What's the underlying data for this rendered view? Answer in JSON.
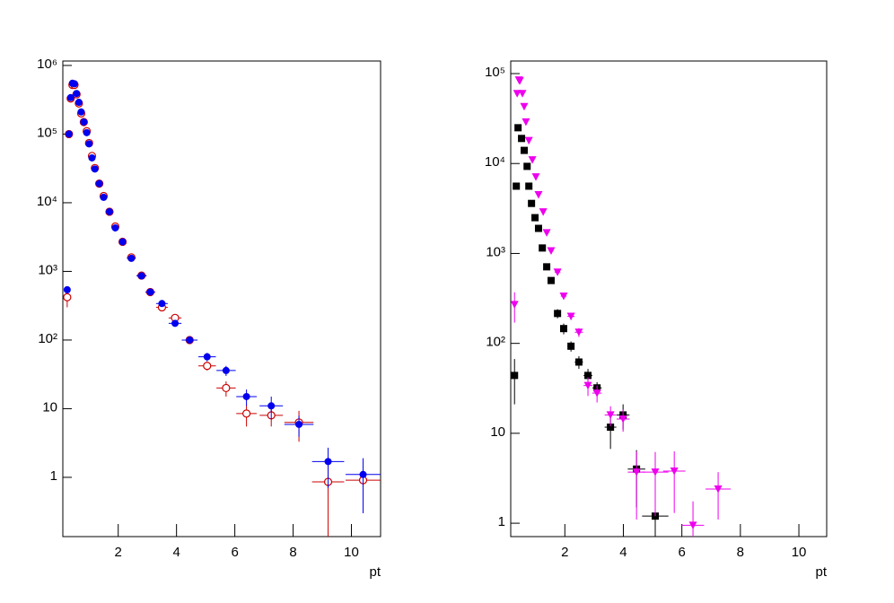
{
  "chart_data": [
    {
      "type": "scatter",
      "log_y": true,
      "xlabel": "pt",
      "xlim": [
        0.1,
        11
      ],
      "ylim": [
        0.137,
        1160000
      ],
      "xticks": [
        2,
        4,
        6,
        8,
        10
      ],
      "yticks": [
        1,
        10,
        {
          "value": 100,
          "label": "10²"
        },
        {
          "value": 1000,
          "label": "10³"
        },
        {
          "value": 10000,
          "label": "10⁴"
        },
        {
          "value": 100000,
          "label": "10⁵"
        },
        {
          "value": 1000000,
          "label": "10⁶"
        }
      ],
      "series": [
        {
          "color": "#cc0000",
          "marker": "circle-open",
          "x": [
            0.25,
            0.31,
            0.37,
            0.43,
            0.5,
            0.57,
            0.65,
            0.73,
            0.82,
            0.92,
            1.0,
            1.1,
            1.2,
            1.35,
            1.5,
            1.7,
            1.9,
            2.15,
            2.45,
            2.8,
            3.1,
            3.5,
            3.95,
            4.45,
            5.05,
            5.7,
            6.4,
            7.25,
            8.2,
            9.2,
            10.4
          ],
          "values": [
            420,
            100000,
            330000,
            520000,
            520000,
            380000,
            280000,
            200000,
            150000,
            110000,
            74000,
            48000,
            32000,
            19000,
            12500,
            7400,
            4500,
            2700,
            1600,
            870,
            500,
            300,
            210,
            100,
            42,
            20,
            8.5,
            8,
            6.3,
            0.86,
            0.91
          ],
          "xerr": [
            0.03,
            0.03,
            0.03,
            0.03,
            0.03,
            0.03,
            0.03,
            0.03,
            0.03,
            0.03,
            0.05,
            0.05,
            0.05,
            0.08,
            0.08,
            0.1,
            0.1,
            0.12,
            0.15,
            0.17,
            0.17,
            0.2,
            0.22,
            0.27,
            0.3,
            0.33,
            0.35,
            0.4,
            0.5,
            0.55,
            0.6
          ],
          "yerr": [
            120,
            1000,
            2000,
            3000,
            3000,
            2000,
            2000,
            1500,
            1000,
            800,
            600,
            400,
            300,
            200,
            150,
            100,
            80,
            60,
            40,
            30,
            20,
            20,
            15,
            8,
            6,
            5,
            3,
            2.5,
            3,
            0.86,
            0.6
          ]
        },
        {
          "color": "#0000ee",
          "marker": "circle",
          "x": [
            0.25,
            0.31,
            0.37,
            0.43,
            0.5,
            0.57,
            0.65,
            0.73,
            0.82,
            0.92,
            1.0,
            1.1,
            1.2,
            1.35,
            1.5,
            1.7,
            1.9,
            2.15,
            2.45,
            2.8,
            3.1,
            3.5,
            3.95,
            4.45,
            5.05,
            5.7,
            6.4,
            7.25,
            8.2,
            9.2,
            10.4
          ],
          "values": [
            540,
            100000,
            340000,
            550000,
            540000,
            390000,
            290000,
            210000,
            150000,
            105000,
            72000,
            45000,
            31000,
            19000,
            12000,
            7400,
            4300,
            2700,
            1550,
            860,
            500,
            340,
            175,
            100,
            57,
            36,
            15,
            11,
            5.9,
            1.7,
            1.1
          ],
          "xerr": [
            0.03,
            0.03,
            0.03,
            0.03,
            0.03,
            0.03,
            0.03,
            0.03,
            0.03,
            0.03,
            0.05,
            0.05,
            0.05,
            0.08,
            0.08,
            0.1,
            0.1,
            0.12,
            0.15,
            0.17,
            0.17,
            0.2,
            0.22,
            0.27,
            0.3,
            0.33,
            0.35,
            0.4,
            0.5,
            0.55,
            0.6
          ],
          "yerr": [
            40,
            1000,
            2000,
            3000,
            3000,
            2000,
            2000,
            1500,
            1000,
            800,
            600,
            400,
            300,
            200,
            150,
            100,
            80,
            60,
            40,
            30,
            20,
            20,
            15,
            8,
            8,
            6,
            4,
            4,
            2,
            1,
            0.8
          ]
        }
      ]
    },
    {
      "type": "scatter",
      "log_y": true,
      "xlabel": "pt",
      "xlim": [
        0.15,
        10.95
      ],
      "ylim": [
        0.71,
        138000
      ],
      "xticks": [
        2,
        4,
        6,
        8,
        10
      ],
      "yticks": [
        1,
        10,
        {
          "value": 100,
          "label": "10²"
        },
        {
          "value": 1000,
          "label": "10³"
        },
        {
          "value": 10000,
          "label": "10⁴"
        },
        {
          "value": 100000,
          "label": "10⁵"
        }
      ],
      "series": [
        {
          "color": "#000000",
          "marker": "square",
          "x": [
            0.28,
            0.34,
            0.4,
            0.52,
            0.61,
            0.71,
            0.77,
            0.86,
            0.98,
            1.1,
            1.23,
            1.38,
            1.53,
            1.75,
            1.96,
            2.21,
            2.48,
            2.79,
            3.1,
            3.56,
            3.99,
            4.45,
            5.09
          ],
          "values": [
            44,
            5600,
            25000,
            19000,
            14000,
            9300,
            5600,
            3600,
            2500,
            1900,
            1150,
            710,
            500,
            215,
            146,
            93,
            62,
            44,
            32,
            11.7,
            16,
            4.0,
            1.2
          ],
          "xerr": [
            0.03,
            0.03,
            0.03,
            0.03,
            0.03,
            0.03,
            0.03,
            0.04,
            0.05,
            0.05,
            0.06,
            0.07,
            0.08,
            0.1,
            0.1,
            0.12,
            0.14,
            0.15,
            0.16,
            0.2,
            0.22,
            0.3,
            0.45
          ],
          "yerr": [
            23,
            300,
            800,
            700,
            600,
            400,
            300,
            200,
            150,
            120,
            80,
            50,
            40,
            25,
            20,
            12,
            10,
            8,
            5,
            5,
            5,
            2.5,
            1
          ]
        },
        {
          "color": "#ee00ee",
          "marker": "triangle-down",
          "x": [
            0.28,
            0.37,
            0.43,
            0.46,
            0.55,
            0.61,
            0.67,
            0.77,
            0.89,
            1.01,
            1.1,
            1.26,
            1.38,
            1.53,
            1.75,
            1.96,
            2.21,
            2.48,
            2.79,
            3.1,
            3.56,
            3.99,
            4.45,
            5.09,
            5.74,
            6.38,
            7.24
          ],
          "values": [
            270,
            60000,
            85000,
            83000,
            60000,
            43000,
            29000,
            18000,
            11000,
            7100,
            4500,
            2900,
            1700,
            1070,
            620,
            335,
            200,
            133,
            34,
            28,
            16,
            14.4,
            3.7,
            3.7,
            3.8,
            0.95,
            2.4
          ],
          "xerr": [
            0.03,
            0.03,
            0.03,
            0.03,
            0.03,
            0.03,
            0.03,
            0.03,
            0.03,
            0.05,
            0.05,
            0.06,
            0.07,
            0.08,
            0.1,
            0.1,
            0.12,
            0.14,
            0.15,
            0.16,
            0.2,
            0.22,
            0.3,
            0.45,
            0.38,
            0.38,
            0.43
          ],
          "yerr": [
            100,
            1000,
            1500,
            1500,
            1000,
            800,
            600,
            400,
            300,
            200,
            150,
            100,
            80,
            60,
            40,
            25,
            18,
            15,
            8,
            6,
            4,
            4,
            2.6,
            2.5,
            2.5,
            0.8,
            1.3
          ]
        }
      ]
    }
  ]
}
